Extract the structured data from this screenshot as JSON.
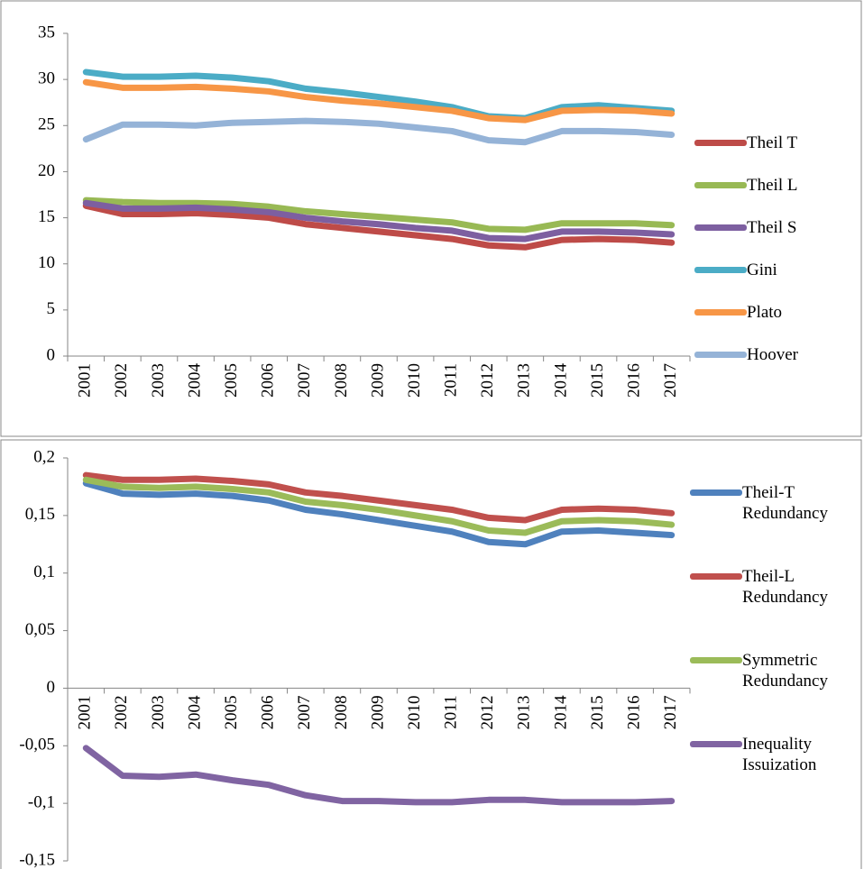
{
  "chart_data": [
    {
      "type": "line",
      "categories": [
        "2001",
        "2002",
        "2003",
        "2004",
        "2005",
        "2006",
        "2007",
        "2008",
        "2009",
        "2010",
        "2011",
        "2012",
        "2013",
        "2014",
        "2015",
        "2016",
        "2017"
      ],
      "ylim": [
        0,
        35
      ],
      "yticks": [
        0,
        5,
        10,
        15,
        20,
        25,
        30,
        35
      ],
      "series": [
        {
          "name": "Theil T",
          "color": "#be4b48",
          "values": [
            16.3,
            15.4,
            15.4,
            15.5,
            15.3,
            15.0,
            14.3,
            13.9,
            13.5,
            13.1,
            12.7,
            12.0,
            11.8,
            12.6,
            12.7,
            12.6,
            12.3
          ]
        },
        {
          "name": "Theil L",
          "color": "#98b954",
          "values": [
            16.9,
            16.7,
            16.6,
            16.6,
            16.5,
            16.2,
            15.7,
            15.4,
            15.1,
            14.8,
            14.5,
            13.8,
            13.7,
            14.4,
            14.4,
            14.4,
            14.2
          ]
        },
        {
          "name": "Theil S",
          "color": "#7d5fa0",
          "values": [
            16.6,
            16.0,
            16.0,
            16.1,
            15.9,
            15.6,
            15.0,
            14.6,
            14.3,
            13.9,
            13.6,
            12.8,
            12.7,
            13.5,
            13.5,
            13.4,
            13.2
          ]
        },
        {
          "name": "Gini",
          "color": "#4bacc6",
          "values": [
            30.8,
            30.3,
            30.3,
            30.4,
            30.2,
            29.8,
            29.0,
            28.6,
            28.1,
            27.6,
            27.0,
            26.0,
            25.8,
            27.0,
            27.2,
            26.9,
            26.6
          ]
        },
        {
          "name": "Plato",
          "color": "#f79646",
          "values": [
            29.7,
            29.1,
            29.1,
            29.2,
            29.0,
            28.7,
            28.1,
            27.7,
            27.4,
            27.0,
            26.6,
            25.8,
            25.6,
            26.6,
            26.7,
            26.6,
            26.3
          ]
        },
        {
          "name": "Hoover",
          "color": "#95b3d7",
          "values": [
            23.5,
            25.1,
            25.1,
            25.0,
            25.3,
            25.4,
            25.5,
            25.4,
            25.2,
            24.8,
            24.4,
            23.4,
            23.2,
            24.4,
            24.4,
            24.3,
            24.0
          ]
        }
      ]
    },
    {
      "type": "line",
      "categories": [
        "2001",
        "2002",
        "2003",
        "2004",
        "2005",
        "2006",
        "2007",
        "2008",
        "2009",
        "2010",
        "2011",
        "2012",
        "2013",
        "2014",
        "2015",
        "2016",
        "2017"
      ],
      "ylim": [
        -0.15,
        0.2
      ],
      "yticks": [
        {
          "value": -0.15,
          "label": "-0,15"
        },
        {
          "value": -0.1,
          "label": "-0,1"
        },
        {
          "value": -0.05,
          "label": "-0,05"
        },
        0,
        {
          "value": 0.05,
          "label": "0,05"
        },
        {
          "value": 0.1,
          "label": "0,1"
        },
        {
          "value": 0.15,
          "label": "0,15"
        },
        {
          "value": 0.2,
          "label": "0,2"
        }
      ],
      "series": [
        {
          "name": "Theil-T Redundancy",
          "color": "#4f81bd",
          "values": [
            0.178,
            0.169,
            0.168,
            0.169,
            0.167,
            0.163,
            0.155,
            0.151,
            0.146,
            0.141,
            0.136,
            0.127,
            0.125,
            0.136,
            0.137,
            0.135,
            0.133
          ]
        },
        {
          "name": "Theil-L Redundancy",
          "color": "#c0504d",
          "values": [
            0.185,
            0.181,
            0.181,
            0.182,
            0.18,
            0.177,
            0.17,
            0.167,
            0.163,
            0.159,
            0.155,
            0.148,
            0.146,
            0.155,
            0.156,
            0.155,
            0.152
          ]
        },
        {
          "name": "Symmetric Redundancy",
          "color": "#9bbb59",
          "values": [
            0.181,
            0.175,
            0.174,
            0.175,
            0.173,
            0.17,
            0.162,
            0.159,
            0.155,
            0.15,
            0.145,
            0.137,
            0.135,
            0.145,
            0.146,
            0.145,
            0.142
          ]
        },
        {
          "name": "Inequality Issuization",
          "color": "#8064a2",
          "values": [
            -0.052,
            -0.076,
            -0.077,
            -0.075,
            -0.08,
            -0.084,
            -0.093,
            -0.098,
            -0.098,
            -0.099,
            -0.099,
            -0.097,
            -0.097,
            -0.099,
            -0.099,
            -0.099,
            -0.098
          ]
        }
      ]
    }
  ]
}
